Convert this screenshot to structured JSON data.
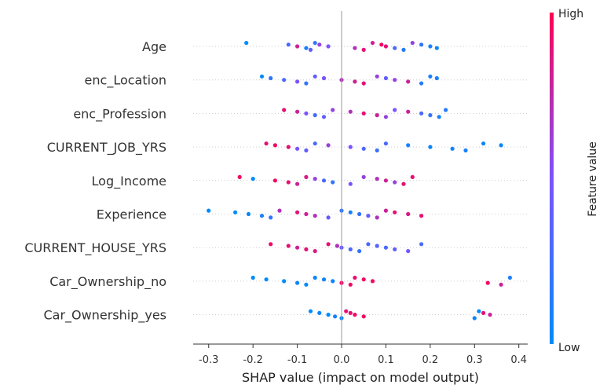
{
  "chart_data": {
    "type": "scatter",
    "subtype": "shap-beeswarm",
    "xlabel": "SHAP value (impact on model output)",
    "xlim": [
      -0.335,
      0.42
    ],
    "xticks": [
      "-0.3",
      "-0.2",
      "-0.1",
      "0.0",
      "0.1",
      "0.2",
      "0.3",
      "0.4"
    ],
    "xtick_values": [
      -0.3,
      -0.2,
      -0.1,
      0.0,
      0.1,
      0.2,
      0.3,
      0.4
    ],
    "colorbar": {
      "label": "Feature value",
      "high": "High",
      "low": "Low",
      "low_color": "#008bfb",
      "high_color": "#ff0052"
    },
    "grid": false,
    "features": [
      {
        "name": "Age",
        "points": [
          [
            -0.215,
            0.0
          ],
          [
            -0.12,
            0.3
          ],
          [
            -0.1,
            0.8
          ],
          [
            -0.08,
            0.1
          ],
          [
            -0.07,
            0.4
          ],
          [
            -0.06,
            0.2
          ],
          [
            -0.05,
            0.6
          ],
          [
            -0.03,
            0.5
          ],
          [
            0.03,
            0.7
          ],
          [
            0.05,
            0.9
          ],
          [
            0.07,
            0.8
          ],
          [
            0.09,
            0.95
          ],
          [
            0.1,
            0.9
          ],
          [
            0.12,
            0.3
          ],
          [
            0.14,
            0.15
          ],
          [
            0.16,
            0.6
          ],
          [
            0.18,
            0.2
          ],
          [
            0.2,
            0.1
          ],
          [
            0.215,
            0.05
          ]
        ]
      },
      {
        "name": "enc_Location",
        "points": [
          [
            -0.18,
            0.0
          ],
          [
            -0.16,
            0.2
          ],
          [
            -0.13,
            0.3
          ],
          [
            -0.1,
            0.5
          ],
          [
            -0.08,
            0.2
          ],
          [
            -0.06,
            0.4
          ],
          [
            -0.04,
            0.5
          ],
          [
            0.0,
            0.7
          ],
          [
            0.03,
            0.8
          ],
          [
            0.05,
            0.9
          ],
          [
            0.08,
            0.6
          ],
          [
            0.1,
            0.4
          ],
          [
            0.12,
            0.6
          ],
          [
            0.15,
            0.8
          ],
          [
            0.18,
            0.15
          ],
          [
            0.2,
            0.1
          ],
          [
            0.215,
            0.1
          ]
        ]
      },
      {
        "name": "enc_Profession",
        "points": [
          [
            -0.13,
            0.9
          ],
          [
            -0.1,
            0.8
          ],
          [
            -0.08,
            0.5
          ],
          [
            -0.06,
            0.3
          ],
          [
            -0.04,
            0.4
          ],
          [
            -0.02,
            0.6
          ],
          [
            0.02,
            0.7
          ],
          [
            0.05,
            0.9
          ],
          [
            0.08,
            0.8
          ],
          [
            0.1,
            0.6
          ],
          [
            0.12,
            0.5
          ],
          [
            0.15,
            0.8
          ],
          [
            0.18,
            0.3
          ],
          [
            0.2,
            0.2
          ],
          [
            0.22,
            0.1
          ],
          [
            0.235,
            0.15
          ]
        ]
      },
      {
        "name": "CURRENT_JOB_YRS",
        "points": [
          [
            -0.17,
            0.9
          ],
          [
            -0.15,
            0.95
          ],
          [
            -0.12,
            0.9
          ],
          [
            -0.1,
            0.5
          ],
          [
            -0.08,
            0.4
          ],
          [
            -0.06,
            0.3
          ],
          [
            -0.03,
            0.6
          ],
          [
            0.02,
            0.5
          ],
          [
            0.05,
            0.3
          ],
          [
            0.08,
            0.25
          ],
          [
            0.1,
            0.3
          ],
          [
            0.15,
            0.1
          ],
          [
            0.2,
            0.05
          ],
          [
            0.25,
            0.05
          ],
          [
            0.28,
            0.1
          ],
          [
            0.32,
            0.05
          ],
          [
            0.36,
            0.02
          ]
        ]
      },
      {
        "name": "Log_Income",
        "points": [
          [
            -0.23,
            0.95
          ],
          [
            -0.2,
            0.0
          ],
          [
            -0.15,
            0.95
          ],
          [
            -0.12,
            0.9
          ],
          [
            -0.1,
            0.8
          ],
          [
            -0.08,
            0.85
          ],
          [
            -0.06,
            0.6
          ],
          [
            -0.04,
            0.3
          ],
          [
            -0.02,
            0.2
          ],
          [
            0.02,
            0.5
          ],
          [
            0.05,
            0.6
          ],
          [
            0.08,
            0.7
          ],
          [
            0.1,
            0.8
          ],
          [
            0.12,
            0.6
          ],
          [
            0.14,
            0.9
          ],
          [
            0.16,
            0.9
          ]
        ]
      },
      {
        "name": "Experience",
        "points": [
          [
            -0.3,
            0.0
          ],
          [
            -0.24,
            0.0
          ],
          [
            -0.21,
            0.05
          ],
          [
            -0.18,
            0.1
          ],
          [
            -0.16,
            0.2
          ],
          [
            -0.14,
            0.7
          ],
          [
            -0.1,
            0.9
          ],
          [
            -0.08,
            0.8
          ],
          [
            -0.06,
            0.7
          ],
          [
            -0.03,
            0.4
          ],
          [
            0.0,
            0.2
          ],
          [
            0.02,
            0.1
          ],
          [
            0.04,
            0.2
          ],
          [
            0.06,
            0.4
          ],
          [
            0.08,
            0.7
          ],
          [
            0.1,
            0.8
          ],
          [
            0.12,
            0.9
          ],
          [
            0.15,
            0.85
          ],
          [
            0.18,
            0.9
          ]
        ]
      },
      {
        "name": "CURRENT_HOUSE_YRS",
        "points": [
          [
            -0.16,
            0.95
          ],
          [
            -0.12,
            0.9
          ],
          [
            -0.1,
            0.8
          ],
          [
            -0.08,
            0.9
          ],
          [
            -0.06,
            0.85
          ],
          [
            -0.03,
            0.9
          ],
          [
            -0.01,
            0.7
          ],
          [
            0.0,
            0.4
          ],
          [
            0.02,
            0.3
          ],
          [
            0.04,
            0.2
          ],
          [
            0.06,
            0.3
          ],
          [
            0.08,
            0.35
          ],
          [
            0.1,
            0.3
          ],
          [
            0.12,
            0.4
          ],
          [
            0.15,
            0.45
          ],
          [
            0.18,
            0.3
          ]
        ]
      },
      {
        "name": "Car_Ownership_no",
        "points": [
          [
            -0.2,
            0.0
          ],
          [
            -0.17,
            0.0
          ],
          [
            -0.13,
            0.0
          ],
          [
            -0.1,
            0.05
          ],
          [
            -0.08,
            0.0
          ],
          [
            -0.06,
            0.05
          ],
          [
            -0.04,
            0.05
          ],
          [
            -0.02,
            0.05
          ],
          [
            0.0,
            0.95
          ],
          [
            0.02,
            0.95
          ],
          [
            0.03,
            0.9
          ],
          [
            0.05,
            0.95
          ],
          [
            0.07,
            0.95
          ],
          [
            0.33,
            0.95
          ],
          [
            0.36,
            0.8
          ],
          [
            0.38,
            0.1
          ]
        ]
      },
      {
        "name": "Car_Ownership_yes",
        "points": [
          [
            -0.07,
            0.0
          ],
          [
            -0.05,
            0.05
          ],
          [
            -0.03,
            0.0
          ],
          [
            -0.015,
            0.1
          ],
          [
            0.0,
            0.05
          ],
          [
            0.01,
            0.9
          ],
          [
            0.02,
            0.9
          ],
          [
            0.03,
            0.95
          ],
          [
            0.05,
            0.95
          ],
          [
            0.3,
            0.05
          ],
          [
            0.31,
            0.0
          ],
          [
            0.32,
            0.9
          ],
          [
            0.335,
            0.8
          ]
        ]
      }
    ]
  }
}
